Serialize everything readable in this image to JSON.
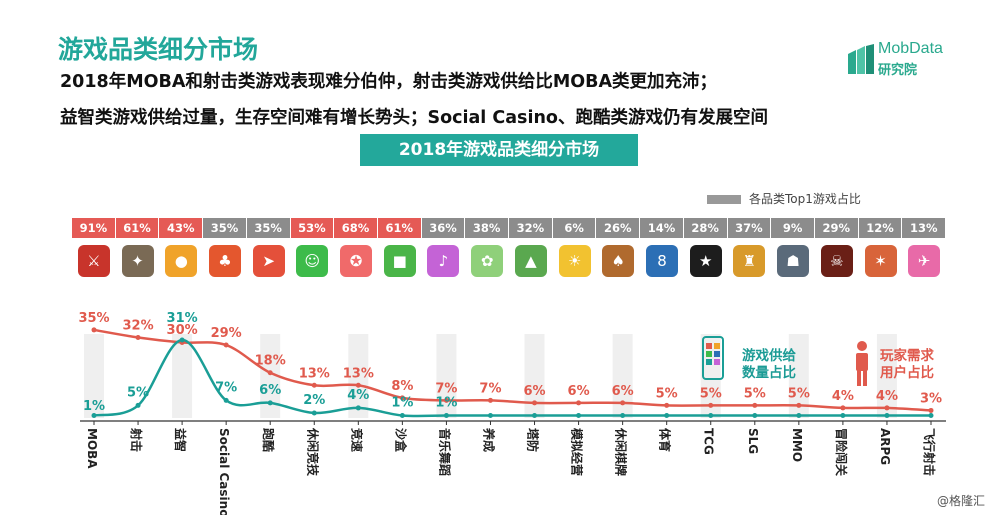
{
  "header": {
    "title": "游戏品类细分市场",
    "subtitle_line1": "2018年MOBA和射击类游戏表现难分伯仲，射击类游戏供给比MOBA类更加充沛；",
    "subtitle_line2": "益智类游戏供给过量，生存空间难有增长势头；Social Casino、跑酷类游戏仍有发展空间",
    "banner": "2018年游戏品类细分市场"
  },
  "logo": {
    "name": "MobData",
    "sub": "研究院"
  },
  "legend": {
    "label": "各品类Top1游戏占比",
    "color": "#999999"
  },
  "annotations": {
    "supply": [
      "游戏供给",
      "数量占比"
    ],
    "demand": [
      "玩家需求",
      "用户占比"
    ]
  },
  "watermark": "@格隆汇",
  "colors": {
    "teal": "#1a9e96",
    "red": "#e05a4d",
    "top1_high": "#e55a55",
    "top1_low": "#8c8c8c"
  },
  "icons": [
    {
      "name": "moba-hero-icon",
      "bg": "#c8342b",
      "glyph": "⚔"
    },
    {
      "name": "shooter-soldier-icon",
      "bg": "#7a6a55",
      "glyph": "✦"
    },
    {
      "name": "puzzle-candy-icon",
      "bg": "#f0a32a",
      "glyph": "●"
    },
    {
      "name": "casino-slot-icon",
      "bg": "#e4572e",
      "glyph": "♣"
    },
    {
      "name": "runner-icon",
      "bg": "#e4503a",
      "glyph": "➤"
    },
    {
      "name": "casual-monster-icon",
      "bg": "#3dbb4a",
      "glyph": "☺"
    },
    {
      "name": "racing-kart-icon",
      "bg": "#f06a6a",
      "glyph": "✪"
    },
    {
      "name": "sandbox-block-icon",
      "bg": "#4ab548",
      "glyph": "■"
    },
    {
      "name": "music-dance-icon",
      "bg": "#c463d6",
      "glyph": "♪"
    },
    {
      "name": "raising-pet-icon",
      "bg": "#8fd07a",
      "glyph": "✿"
    },
    {
      "name": "tower-defense-icon",
      "bg": "#5aa84f",
      "glyph": "▲"
    },
    {
      "name": "sim-farm-icon",
      "bg": "#f2c230",
      "glyph": "☀"
    },
    {
      "name": "chess-card-icon",
      "bg": "#b06a2e",
      "glyph": "♠"
    },
    {
      "name": "sports-billiard-icon",
      "bg": "#2c6fb5",
      "glyph": "8"
    },
    {
      "name": "tcg-card-icon",
      "bg": "#1d1d1d",
      "glyph": "★"
    },
    {
      "name": "slg-clan-icon",
      "bg": "#d89a2a",
      "glyph": "♜"
    },
    {
      "name": "mmo-warrior-icon",
      "bg": "#5a6a7a",
      "glyph": "☗"
    },
    {
      "name": "adventure-dark-icon",
      "bg": "#6a1f16",
      "glyph": "☠"
    },
    {
      "name": "arpg-hero-icon",
      "bg": "#d8643a",
      "glyph": "✶"
    },
    {
      "name": "flying-shooter-icon",
      "bg": "#e86aa8",
      "glyph": "✈"
    }
  ],
  "chart_data": {
    "type": "line",
    "title": "2018年游戏品类细分市场",
    "categories": [
      "MOBA",
      "射击",
      "益智",
      "Social Casino",
      "跑酷",
      "休闲竞技",
      "竞速",
      "沙盒",
      "音乐舞蹈",
      "养成",
      "塔防",
      "模拟经营",
      "休闲棋牌",
      "体育",
      "TCG",
      "SLG",
      "MMO",
      "冒险闯关",
      "ARPG",
      "飞行射击"
    ],
    "series": [
      {
        "name": "用户占比",
        "color": "#e05a4d",
        "values": [
          35,
          32,
          30,
          29,
          18,
          13,
          13,
          8,
          7,
          7,
          6,
          6,
          6,
          5,
          5,
          5,
          5,
          4,
          4,
          3
        ]
      },
      {
        "name": "数量占比",
        "color": "#1a9e96",
        "values": [
          1,
          5,
          31,
          7,
          6,
          2,
          4,
          1,
          1,
          1,
          1,
          1,
          1,
          1,
          1,
          1,
          1,
          1,
          1,
          1
        ]
      }
    ],
    "value_labels": {
      "用户占比": [
        "35%",
        "32%",
        "30%",
        "29%",
        "18%",
        "13%",
        "13%",
        "8%",
        "7%",
        "7%",
        "6%",
        "6%",
        "6%",
        "5%",
        "5%",
        "5%",
        "5%",
        "4%",
        "4%",
        "3%"
      ],
      "数量占比": [
        "1%",
        "5%",
        "31%",
        "7%",
        "6%",
        "2%",
        "4%",
        "1%",
        "1%",
        "",
        "",
        "",
        "",
        "",
        "",
        "",
        "",
        "",
        "",
        ""
      ]
    },
    "top1_share": {
      "name": "各品类Top1游戏占比",
      "values": [
        91,
        61,
        43,
        35,
        35,
        53,
        68,
        61,
        36,
        38,
        32,
        6,
        26,
        14,
        28,
        37,
        9,
        29,
        12,
        13
      ],
      "labels": [
        "91%",
        "61%",
        "43%",
        "35%",
        "35%",
        "53%",
        "68%",
        "61%",
        "36%",
        "38%",
        "32%",
        "6%",
        "26%",
        "14%",
        "28%",
        "37%",
        "9%",
        "29%",
        "12%",
        "13%"
      ]
    },
    "ylim": [
      0,
      40
    ],
    "legend_position": "top-right"
  }
}
